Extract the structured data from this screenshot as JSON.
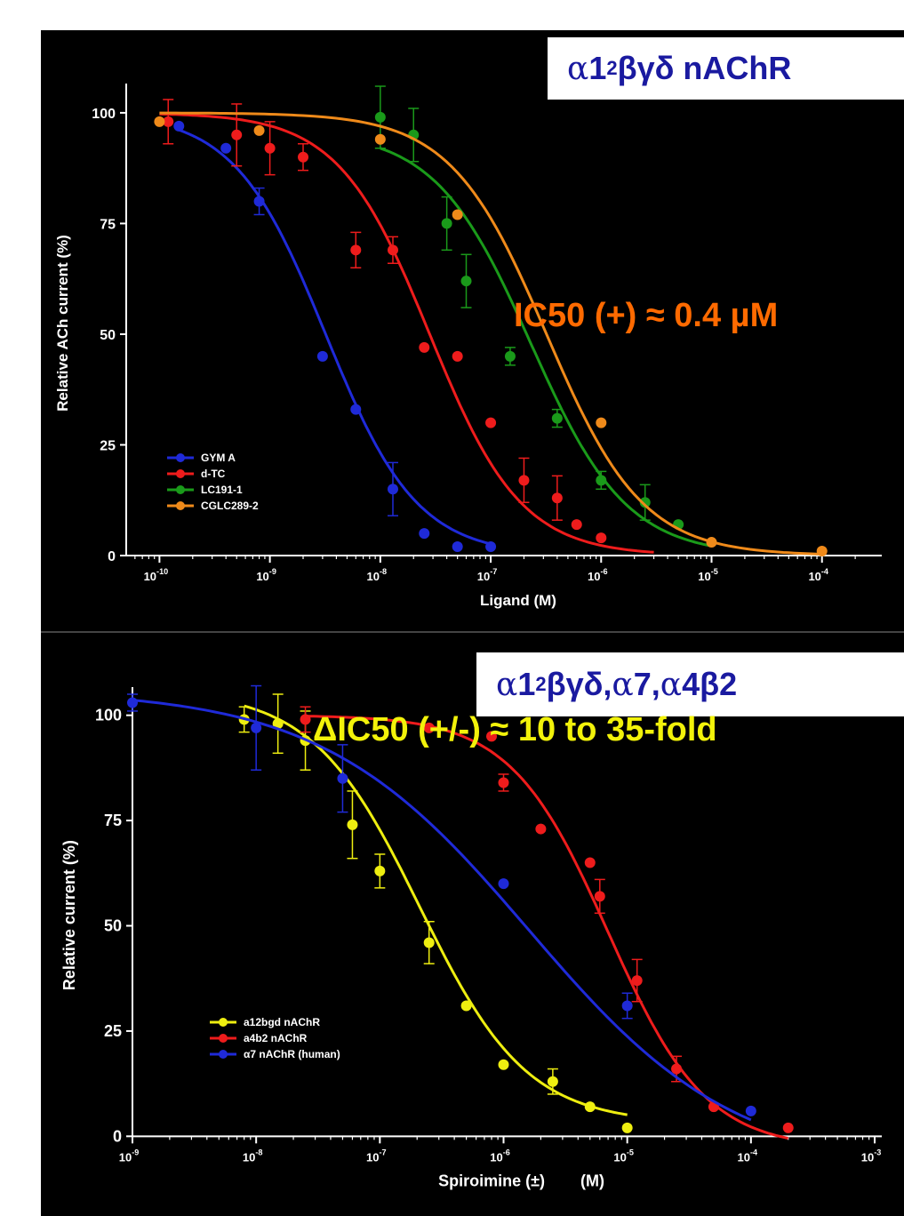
{
  "chart_data": [
    {
      "type": "scatter",
      "title": "",
      "xlabel": "Ligand (M)",
      "ylabel": "Relative ACh current (%)",
      "xscale": "log",
      "xlim": [
        5e-11,
        0.0003
      ],
      "ylim": [
        0,
        105
      ],
      "xticks": [
        1e-10,
        1e-09,
        1e-08,
        1e-07,
        1e-06,
        1e-05,
        0.0001
      ],
      "xtick_labels": [
        {
          "base": "10",
          "exp": "-10"
        },
        {
          "base": "10",
          "exp": "-9"
        },
        {
          "base": "10",
          "exp": "-8"
        },
        {
          "base": "10",
          "exp": "-7"
        },
        {
          "base": "10",
          "exp": "-6"
        },
        {
          "base": "10",
          "exp": "-5"
        },
        {
          "base": "10",
          "exp": "-4"
        }
      ],
      "yticks": [
        "0",
        "25",
        "50",
        "75",
        "100"
      ],
      "ytick_values": [
        0,
        25,
        50,
        75,
        100
      ],
      "grid": false,
      "legend_position": "bottom-left",
      "callout": {
        "prefix": "α",
        "main": "1",
        "sub": "2",
        "rest": "βγδ nAChR"
      },
      "annotation": "IC50 (+) ≈ 0.4 µM",
      "series": [
        {
          "name": "GYM A",
          "color": "#1f2ad8",
          "x": [
            1.5e-10,
            4e-10,
            8e-10,
            3e-09,
            6e-09,
            1.3e-08,
            2.5e-08,
            5e-08,
            1e-07
          ],
          "y": [
            97,
            92,
            80,
            45,
            33,
            15,
            5,
            2,
            2
          ],
          "err": [
            0,
            0,
            3,
            0,
            0,
            6,
            0,
            0,
            0
          ],
          "fit": {
            "top": 100,
            "bottom": 0,
            "ic50": 3.2e-09,
            "hill": 1.05,
            "xmin": 1.5e-10,
            "xmax": 1e-07
          }
        },
        {
          "name": "d-TC",
          "color": "#ee1c1c",
          "x": [
            1.2e-10,
            5e-10,
            1e-09,
            2e-09,
            6e-09,
            1.3e-08,
            2.5e-08,
            5e-08,
            1e-07,
            2e-07,
            4e-07,
            6e-07,
            1e-06
          ],
          "y": [
            98,
            95,
            92,
            90,
            69,
            69,
            47,
            45,
            30,
            17,
            13,
            7,
            4
          ],
          "err": [
            5,
            7,
            6,
            3,
            4,
            3,
            0,
            0,
            0,
            5,
            5,
            0,
            0
          ],
          "fit": {
            "top": 100,
            "bottom": 0,
            "ic50": 2.8e-08,
            "hill": 1.05,
            "xmin": 1e-10,
            "xmax": 3e-06
          }
        },
        {
          "name": "LC191-1",
          "color": "#1a9a1a",
          "x": [
            1e-08,
            2e-08,
            4e-08,
            6e-08,
            1.5e-07,
            4e-07,
            1e-06,
            2.5e-06,
            5e-06
          ],
          "y": [
            99,
            95,
            75,
            62,
            45,
            31,
            17,
            12,
            7
          ],
          "err": [
            7,
            6,
            6,
            6,
            2,
            2,
            2,
            4,
            0
          ],
          "fit": {
            "top": 96,
            "bottom": 0,
            "ic50": 2.3e-07,
            "hill": 1.0,
            "xmin": 1e-08,
            "xmax": 1e-05
          }
        },
        {
          "name": "CGLC289-2",
          "color": "#ef8a1a",
          "x": [
            1e-10,
            8e-10,
            1e-08,
            5e-08,
            1e-06,
            1e-05,
            0.0001
          ],
          "y": [
            98,
            96,
            94,
            77,
            30,
            3,
            1
          ],
          "err": [
            0,
            0,
            0,
            0,
            0,
            0,
            0
          ],
          "fit": {
            "top": 100,
            "bottom": 0,
            "ic50": 3.2e-07,
            "hill": 1.0,
            "xmin": 1e-10,
            "xmax": 0.0001
          }
        }
      ]
    },
    {
      "type": "scatter",
      "title": "",
      "xlabel": "Spiroimine (±)        (M)",
      "ylabel": "Relative current (%)",
      "xscale": "log",
      "xlim": [
        1e-09,
        0.001
      ],
      "ylim": [
        -5,
        105
      ],
      "xticks": [
        1e-09,
        1e-08,
        1e-07,
        1e-06,
        1e-05,
        0.0001,
        0.001
      ],
      "xtick_labels": [
        {
          "base": "10",
          "exp": "-9"
        },
        {
          "base": "10",
          "exp": "-8"
        },
        {
          "base": "10",
          "exp": "-7"
        },
        {
          "base": "10",
          "exp": "-6"
        },
        {
          "base": "10",
          "exp": "-5"
        },
        {
          "base": "10",
          "exp": "-4"
        },
        {
          "base": "10",
          "exp": "-3"
        }
      ],
      "yticks": [
        "0",
        "25",
        "50",
        "75",
        "100"
      ],
      "ytick_values": [
        0,
        25,
        50,
        75,
        100
      ],
      "grid": false,
      "legend_position": "bottom-left",
      "callout": {
        "prefix": "α",
        "main": "1",
        "sub": "2",
        "rest": "βγδ, ",
        "prefix2": "α",
        "rest2": "7, ",
        "prefix3": "α",
        "rest3": "4β2"
      },
      "annotation": "ΔIC50 (+/-) ≈ 10 to 35-fold",
      "series": [
        {
          "name": "a12bgd nAChR",
          "color": "#eeee10",
          "x": [
            8e-09,
            1.5e-08,
            2.5e-08,
            6e-08,
            1e-07,
            2.5e-07,
            5e-07,
            1e-06,
            2.5e-06,
            5e-06,
            1e-05
          ],
          "y": [
            99,
            98,
            94,
            74,
            63,
            46,
            31,
            17,
            13,
            7,
            2
          ],
          "err": [
            3,
            7,
            7,
            8,
            4,
            5,
            0,
            0,
            3,
            0,
            0
          ],
          "fit": {
            "top": 106,
            "bottom": 3,
            "ic50": 2.1e-07,
            "hill": 1.0,
            "xmin": 8e-09,
            "xmax": 1e-05
          }
        },
        {
          "name": "a4b2 nAChR",
          "color": "#ee1c1c",
          "x": [
            2.5e-08,
            2.5e-07,
            8e-07,
            1e-06,
            2e-06,
            5e-06,
            6e-06,
            1.2e-05,
            2.5e-05,
            5e-05,
            0.0002
          ],
          "y": [
            99,
            97,
            95,
            84,
            73,
            65,
            57,
            37,
            16,
            7,
            2
          ],
          "err": [
            3,
            0,
            0,
            2,
            0,
            0,
            4,
            5,
            3,
            0,
            0
          ],
          "fit": {
            "top": 100,
            "bottom": -3,
            "ic50": 7e-06,
            "hill": 1.1,
            "xmin": 2.5e-08,
            "xmax": 0.0002
          }
        },
        {
          "name": "α7 nAChR (human)",
          "color": "#1f2ad8",
          "x": [
            1e-09,
            1e-08,
            5e-08,
            1e-06,
            1e-05,
            0.0001
          ],
          "y": [
            103,
            97,
            85,
            60,
            31,
            6
          ],
          "err": [
            2,
            10,
            8,
            0,
            3,
            0
          ],
          "fit": {
            "top": 106,
            "bottom": -8,
            "ic50": 1.6e-06,
            "hill": 0.52,
            "xmin": 1e-09,
            "xmax": 0.0001
          }
        }
      ]
    }
  ]
}
